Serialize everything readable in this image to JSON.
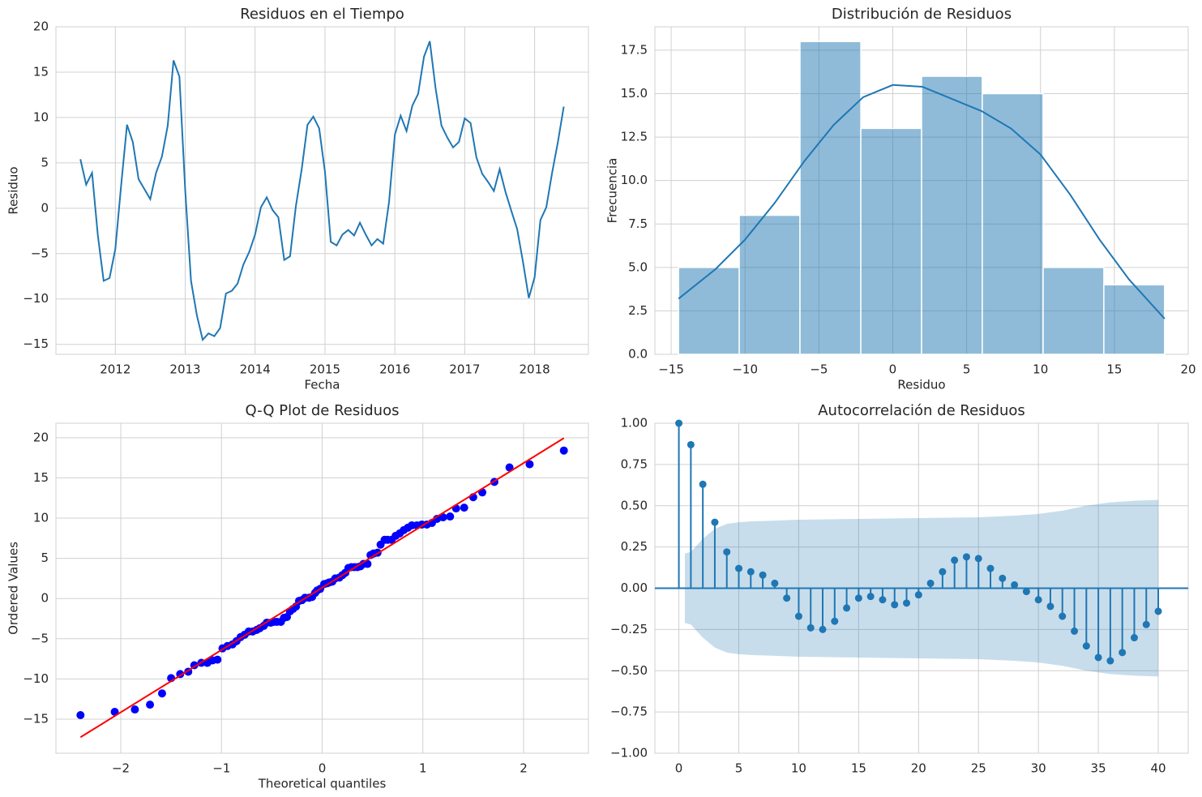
{
  "chart_data": [
    {
      "type": "line",
      "title": "Residuos en el Tiempo",
      "xlabel": "Fecha",
      "ylabel": "Residuo",
      "color": "#1f77b4",
      "grid": true,
      "x": [
        2011.5,
        2011.583,
        2011.667,
        2011.75,
        2011.833,
        2011.917,
        2012,
        2012.083,
        2012.167,
        2012.25,
        2012.333,
        2012.417,
        2012.5,
        2012.583,
        2012.667,
        2012.75,
        2012.833,
        2012.917,
        2013,
        2013.083,
        2013.167,
        2013.25,
        2013.333,
        2013.417,
        2013.5,
        2013.583,
        2013.667,
        2013.75,
        2013.833,
        2013.917,
        2014,
        2014.083,
        2014.167,
        2014.25,
        2014.333,
        2014.417,
        2014.5,
        2014.583,
        2014.667,
        2014.75,
        2014.833,
        2014.917,
        2015,
        2015.083,
        2015.167,
        2015.25,
        2015.333,
        2015.417,
        2015.5,
        2015.583,
        2015.667,
        2015.75,
        2015.833,
        2015.917,
        2016,
        2016.083,
        2016.167,
        2016.25,
        2016.333,
        2016.417,
        2016.5,
        2016.583,
        2016.667,
        2016.75,
        2016.833,
        2016.917,
        2017,
        2017.083,
        2017.167,
        2017.25,
        2017.333,
        2017.417,
        2017.5,
        2017.583,
        2017.667,
        2017.75,
        2017.833,
        2017.917,
        2018,
        2018.083,
        2018.167,
        2018.25,
        2018.333,
        2018.417
      ],
      "values": [
        5.4,
        2.6,
        3.9,
        -3,
        -8,
        -7.7,
        -4.5,
        2.5,
        9.2,
        7.3,
        3.2,
        2.1,
        1.0,
        3.9,
        5.7,
        9.1,
        16.3,
        14.5,
        2,
        -8,
        -11.8,
        -14.5,
        -13.8,
        -14.1,
        -13.2,
        -9.4,
        -9.1,
        -8.3,
        -6.2,
        -4.8,
        -2.9,
        0.1,
        1.2,
        -0.2,
        -1,
        -5.7,
        -5.3,
        0.2,
        4.3,
        9.2,
        10.1,
        8.8,
        4,
        -3.7,
        -4.1,
        -2.9,
        -2.4,
        -3,
        -1.6,
        -2.9,
        -4.1,
        -3.4,
        -3.9,
        0.7,
        8.1,
        10.2,
        8.5,
        11.3,
        12.6,
        16.7,
        18.4,
        13.2,
        9.1,
        7.8,
        6.7,
        7.3,
        9.9,
        9.4,
        5.6,
        3.8,
        2.9,
        1.9,
        4.3,
        1.8,
        -0.3,
        -2.3,
        -5.9,
        -9.9,
        -7.6,
        -1.3,
        0.1,
        3.9,
        7.3,
        11.2
      ],
      "xlim": [
        2011.15,
        2018.77
      ],
      "xticks": [
        2012,
        2013,
        2014,
        2015,
        2016,
        2017,
        2018
      ],
      "ylim": [
        -16.1,
        20
      ],
      "yticks": [
        {
          "value": -15,
          "label": "−15"
        },
        {
          "value": -10,
          "label": "−10"
        },
        {
          "value": -5,
          "label": "−5"
        },
        0,
        5,
        10,
        15,
        20
      ]
    },
    {
      "type": "histogram",
      "title": "Distribución de Residuos",
      "xlabel": "Residuo",
      "ylabel": "Frecuencia",
      "color": "#1f77b4",
      "grid": true,
      "bins": [
        -14.5,
        -10.39,
        -6.28,
        -2.16,
        1.95,
        6.06,
        10.18,
        14.29,
        18.4
      ],
      "values": [
        5,
        8,
        18,
        13,
        16,
        15,
        5,
        4
      ],
      "kde": {
        "x": [
          -14.5,
          -12,
          -10,
          -8,
          -6,
          -4,
          -2,
          0,
          2,
          4,
          6,
          8,
          10,
          12,
          14,
          16,
          18.4
        ],
        "y": [
          3.2,
          4.9,
          6.6,
          8.7,
          11.1,
          13.2,
          14.8,
          15.5,
          15.4,
          14.7,
          14.0,
          13.0,
          11.5,
          9.2,
          6.6,
          4.3,
          2.05
        ]
      },
      "xlim": [
        -16.1,
        20
      ],
      "xticks": [
        {
          "value": -15,
          "label": "−15"
        },
        {
          "value": -10,
          "label": "−10"
        },
        {
          "value": -5,
          "label": "−5"
        },
        0,
        5,
        10,
        15,
        20
      ],
      "ylim": [
        0,
        18.85
      ],
      "yticks": [
        {
          "value": 0,
          "label": "0.0"
        },
        2.5,
        {
          "value": 5,
          "label": "5.0"
        },
        7.5,
        {
          "value": 10,
          "label": "10.0"
        },
        12.5,
        {
          "value": 15,
          "label": "15.0"
        },
        17.5
      ]
    },
    {
      "type": "scatter",
      "title": "Q-Q Plot de Residuos",
      "xlabel": "Theoretical quantiles",
      "ylabel": "Ordered Values",
      "color": "#0000ff",
      "grid": true,
      "x": [
        -2.4,
        -2.06,
        -1.86,
        -1.71,
        -1.59,
        -1.5,
        -1.41,
        -1.33,
        -1.27,
        -1.2,
        -1.14,
        -1.09,
        -1.04,
        -0.99,
        -0.94,
        -0.89,
        -0.85,
        -0.81,
        -0.77,
        -0.73,
        -0.69,
        -0.65,
        -0.62,
        -0.58,
        -0.55,
        -0.51,
        -0.48,
        -0.45,
        -0.41,
        -0.38,
        -0.35,
        -0.32,
        -0.29,
        -0.26,
        -0.23,
        -0.2,
        -0.17,
        -0.13,
        -0.1,
        -0.07,
        -0.05,
        -0.02,
        0.02,
        0.05,
        0.07,
        0.1,
        0.13,
        0.17,
        0.2,
        0.23,
        0.26,
        0.29,
        0.32,
        0.35,
        0.38,
        0.41,
        0.45,
        0.48,
        0.51,
        0.55,
        0.58,
        0.62,
        0.65,
        0.69,
        0.73,
        0.77,
        0.81,
        0.85,
        0.89,
        0.94,
        0.99,
        1.04,
        1.09,
        1.14,
        1.2,
        1.27,
        1.33,
        1.41,
        1.5,
        1.59,
        1.71,
        1.86,
        2.06,
        2.4
      ],
      "values": [
        -14.5,
        -14.1,
        -13.8,
        -13.2,
        -11.8,
        -9.9,
        -9.4,
        -9.1,
        -8.3,
        -8,
        -8,
        -7.7,
        -7.6,
        -6.2,
        -5.9,
        -5.7,
        -5.3,
        -4.8,
        -4.5,
        -4.1,
        -4.1,
        -3.9,
        -3.7,
        -3.4,
        -3,
        -3,
        -2.9,
        -2.9,
        -2.9,
        -2.4,
        -2.3,
        -1.6,
        -1.3,
        -1,
        -0.3,
        -0.2,
        0.1,
        0.1,
        0.2,
        0.7,
        1.0,
        1.2,
        1.8,
        1.9,
        2,
        2.1,
        2.5,
        2.6,
        2.9,
        3.2,
        3.8,
        3.9,
        3.9,
        3.9,
        4,
        4.3,
        4.3,
        5.4,
        5.6,
        5.7,
        6.7,
        7.3,
        7.3,
        7.3,
        7.8,
        8.1,
        8.5,
        8.8,
        9.1,
        9.1,
        9.2,
        9.2,
        9.4,
        9.9,
        10.1,
        10.2,
        11.2,
        11.3,
        12.6,
        13.2,
        14.5,
        16.3,
        16.7,
        18.4
      ],
      "fit": {
        "x": [
          -2.4,
          2.4
        ],
        "y": [
          -17.25,
          19.95
        ],
        "color": "#ff0000"
      },
      "xlim": [
        -2.644,
        2.644
      ],
      "xticks": [
        {
          "value": -2,
          "label": "−2"
        },
        {
          "value": -1,
          "label": "−1"
        },
        0,
        1,
        2
      ],
      "ylim": [
        -19.24,
        21.8
      ],
      "yticks": [
        {
          "value": -15,
          "label": "−15"
        },
        {
          "value": -10,
          "label": "−10"
        },
        {
          "value": -5,
          "label": "−5"
        },
        0,
        5,
        10,
        15,
        20
      ]
    },
    {
      "type": "stem",
      "title": "Autocorrelación de Residuos",
      "color": "#1f77b4",
      "grid": true,
      "x": [
        0,
        1,
        2,
        3,
        4,
        5,
        6,
        7,
        8,
        9,
        10,
        11,
        12,
        13,
        14,
        15,
        16,
        17,
        18,
        19,
        20,
        21,
        22,
        23,
        24,
        25,
        26,
        27,
        28,
        29,
        30,
        31,
        32,
        33,
        34,
        35,
        36,
        37,
        38,
        39,
        40
      ],
      "values": [
        1.0,
        0.87,
        0.63,
        0.4,
        0.22,
        0.12,
        0.1,
        0.08,
        0.03,
        -0.06,
        -0.17,
        -0.24,
        -0.25,
        -0.2,
        -0.12,
        -0.06,
        -0.05,
        -0.07,
        -0.1,
        -0.09,
        -0.04,
        0.03,
        0.1,
        0.17,
        0.19,
        0.18,
        0.12,
        0.06,
        0.02,
        -0.02,
        -0.07,
        -0.11,
        -0.17,
        -0.26,
        -0.35,
        -0.42,
        -0.44,
        -0.39,
        -0.3,
        -0.22,
        -0.14
      ],
      "confint": {
        "x": [
          0.5,
          1,
          2,
          3,
          4,
          5,
          6,
          8,
          10,
          15,
          20,
          25,
          28,
          30,
          32,
          34,
          36,
          38,
          40
        ],
        "upper": [
          0.21,
          0.22,
          0.3,
          0.36,
          0.39,
          0.4,
          0.405,
          0.41,
          0.415,
          0.42,
          0.425,
          0.43,
          0.44,
          0.45,
          0.47,
          0.5,
          0.52,
          0.53,
          0.535
        ],
        "lower": [
          -0.21,
          -0.22,
          -0.3,
          -0.36,
          -0.39,
          -0.4,
          -0.405,
          -0.41,
          -0.415,
          -0.42,
          -0.425,
          -0.43,
          -0.44,
          -0.45,
          -0.47,
          -0.5,
          -0.52,
          -0.53,
          -0.535
        ]
      },
      "xlim": [
        -2,
        42.5
      ],
      "xticks": [
        0,
        5,
        10,
        15,
        20,
        25,
        30,
        35,
        40
      ],
      "ylim": [
        -1,
        1
      ],
      "yticks": [
        {
          "value": -1,
          "label": "−1.00"
        },
        {
          "value": -0.75,
          "label": "−0.75"
        },
        {
          "value": -0.5,
          "label": "−0.50"
        },
        {
          "value": -0.25,
          "label": "−0.25"
        },
        {
          "value": 0,
          "label": "0.00"
        },
        0.25,
        {
          "value": 0.5,
          "label": "0.50"
        },
        0.75,
        {
          "value": 1,
          "label": "1.00"
        }
      ]
    }
  ]
}
